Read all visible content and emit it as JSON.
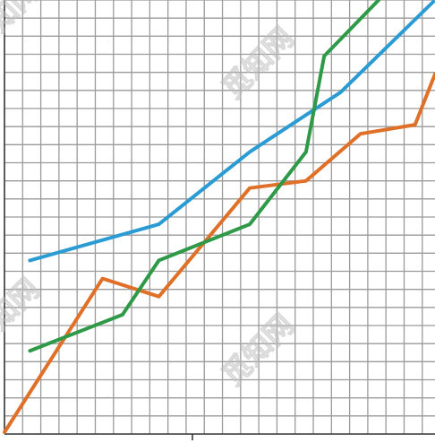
{
  "chart_data": {
    "type": "line",
    "title": "",
    "xlabel": "",
    "ylabel": "",
    "grid": true,
    "legend": "none",
    "xlim": [
      0,
      23.7
    ],
    "ylim": [
      0,
      24
    ],
    "series": [
      {
        "color": "#2b9bd4",
        "x": [
          1.4,
          8.5,
          13.5,
          18.5,
          23.6
        ],
        "y": [
          9.6,
          11.6,
          15.6,
          18.9,
          23.9
        ]
      },
      {
        "color": "#e07028",
        "x": [
          0.0,
          5.4,
          8.5,
          13.5,
          16.6,
          19.6,
          22.6,
          23.7
        ],
        "y": [
          0.1,
          8.6,
          7.6,
          13.6,
          14.0,
          16.6,
          17.1,
          19.9
        ]
      },
      {
        "color": "#2e9a48",
        "x": [
          1.4,
          6.5,
          8.5,
          13.5,
          16.6,
          17.6,
          20.6
        ],
        "y": [
          4.6,
          6.6,
          9.6,
          11.6,
          15.6,
          20.9,
          24.0
        ]
      }
    ]
  },
  "watermark": {
    "text": "觅知网"
  }
}
